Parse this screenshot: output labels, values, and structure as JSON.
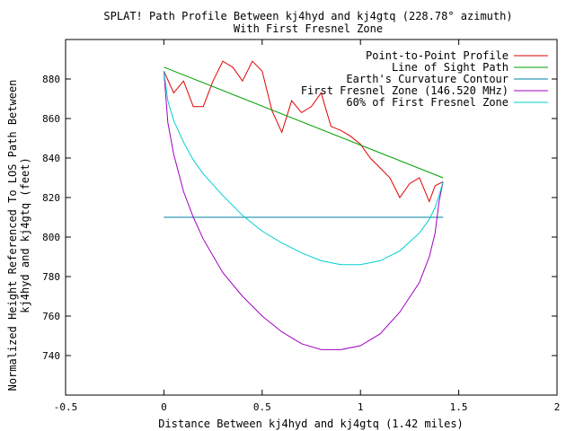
{
  "chart_data": {
    "type": "line",
    "title": "SPLAT! Path Profile Between kj4hyd and kj4gtq (228.78° azimuth)",
    "subtitle": "With First Fresnel Zone",
    "xlabel": "Distance Between kj4hyd and kj4gtq (1.42 miles)",
    "ylabel_line1": "Normalized Height Referenced To LOS Path Between",
    "ylabel_line2": "kj4hyd and kj4gtq (feet)",
    "xlim": [
      -0.5,
      2
    ],
    "ylim": [
      720,
      900
    ],
    "x_ticks": [
      -0.5,
      0,
      0.5,
      1,
      1.5,
      2
    ],
    "x_tick_labels": [
      "-0.5",
      "0",
      "0.5",
      "1",
      "1.5",
      "2"
    ],
    "y_ticks": [
      740,
      760,
      780,
      800,
      820,
      840,
      860,
      880
    ],
    "y_tick_labels": [
      "740",
      "760",
      "780",
      "800",
      "820",
      "840",
      "860",
      "880"
    ],
    "grid": false,
    "legend_position": "top-right",
    "series": [
      {
        "name": "Point-to-Point Profile",
        "color": "#e00000",
        "x": [
          0,
          0.05,
          0.1,
          0.15,
          0.2,
          0.25,
          0.3,
          0.35,
          0.4,
          0.45,
          0.5,
          0.55,
          0.6,
          0.65,
          0.7,
          0.75,
          0.8,
          0.85,
          0.9,
          0.95,
          1.0,
          1.05,
          1.1,
          1.15,
          1.2,
          1.25,
          1.3,
          1.35,
          1.38,
          1.42
        ],
        "y": [
          884,
          873,
          879,
          866,
          866,
          879,
          889,
          886,
          879,
          889,
          884,
          864,
          853,
          869,
          863,
          866,
          873,
          856,
          854,
          851,
          847,
          840,
          835,
          830,
          820,
          827,
          830,
          818,
          826,
          828
        ]
      },
      {
        "name": "Line of Sight Path",
        "color": "#00a000",
        "x": [
          0,
          1.42
        ],
        "y": [
          886,
          830
        ]
      },
      {
        "name": "Earth's Curvature Contour",
        "color": "#0080a0",
        "x": [
          0,
          1.42
        ],
        "y": [
          810,
          810
        ]
      },
      {
        "name": "First Fresnel Zone (146.520 MHz)",
        "color": "#a000c0",
        "x": [
          0,
          0.02,
          0.05,
          0.1,
          0.15,
          0.2,
          0.3,
          0.4,
          0.5,
          0.6,
          0.7,
          0.8,
          0.9,
          1.0,
          1.1,
          1.2,
          1.3,
          1.35,
          1.38,
          1.4,
          1.42
        ],
        "y": [
          884,
          858,
          842,
          823,
          810,
          799,
          782,
          770,
          760,
          752,
          746,
          743,
          743,
          745,
          751,
          762,
          777,
          790,
          802,
          818,
          828
        ]
      },
      {
        "name": "60% of First Fresnel Zone",
        "color": "#00d0d0",
        "x": [
          0,
          0.02,
          0.05,
          0.1,
          0.15,
          0.2,
          0.3,
          0.4,
          0.5,
          0.6,
          0.7,
          0.8,
          0.9,
          1.0,
          1.1,
          1.2,
          1.3,
          1.35,
          1.38,
          1.4,
          1.42
        ],
        "y": [
          884,
          869,
          859,
          848,
          839,
          832,
          821,
          811,
          803,
          797,
          792,
          788,
          786,
          786,
          788,
          793,
          802,
          809,
          815,
          821,
          828
        ]
      }
    ]
  }
}
